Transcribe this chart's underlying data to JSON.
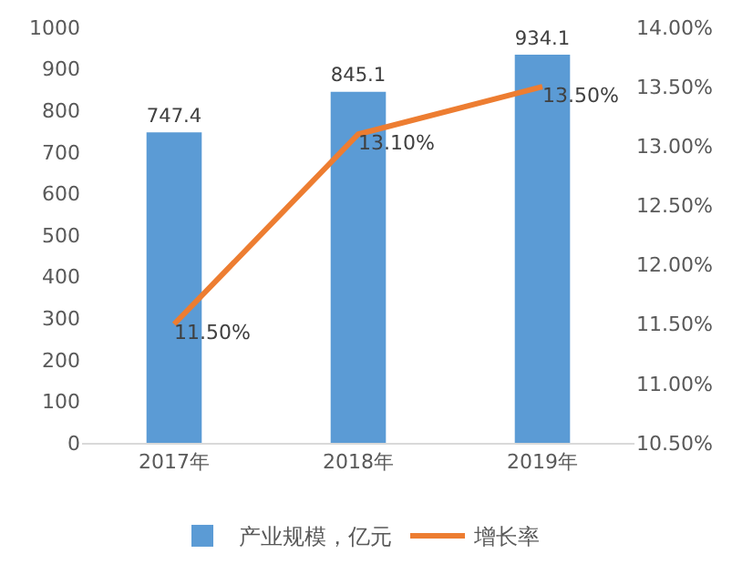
{
  "chart_data": {
    "type": "bar",
    "categories": [
      "2017年",
      "2018年",
      "2019年"
    ],
    "series": [
      {
        "name": "产业规模，亿元",
        "color": "#5b9bd5",
        "values": [
          747.4,
          845.1,
          934.1
        ],
        "value_labels": [
          "747.4",
          "845.1",
          "934.1"
        ]
      },
      {
        "name": "增长率",
        "type": "line",
        "axis": "y2",
        "color": "#ed7d31",
        "values": [
          11.5,
          13.1,
          13.5
        ],
        "value_labels": [
          "11.50%",
          "13.10%",
          "13.50%"
        ]
      }
    ],
    "ylim": [
      0,
      1000
    ],
    "yticks": [
      0,
      100,
      200,
      300,
      400,
      500,
      600,
      700,
      800,
      900,
      1000
    ],
    "y2lim": [
      10.5,
      14
    ],
    "y2ticks": [
      {
        "value": 10.5,
        "label": "10.50%"
      },
      {
        "value": 11,
        "label": "11.00%"
      },
      {
        "value": 11.5,
        "label": "11.50%"
      },
      {
        "value": 12,
        "label": "12.00%"
      },
      {
        "value": 12.5,
        "label": "12.50%"
      },
      {
        "value": 13,
        "label": "13.00%"
      },
      {
        "value": 13.5,
        "label": "13.50%"
      },
      {
        "value": 14,
        "label": "14.00%"
      }
    ],
    "grid": false,
    "legend": "bottom",
    "marker": "none",
    "line_style": "solid"
  }
}
